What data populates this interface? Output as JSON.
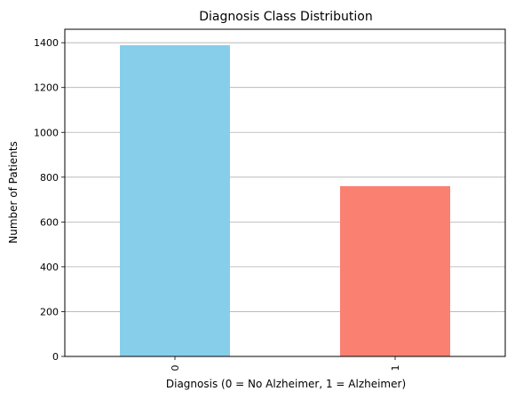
{
  "chart_data": {
    "type": "bar",
    "title": "Diagnosis Class Distribution",
    "xlabel": "Diagnosis (0 = No Alzheimer, 1 = Alzheimer)",
    "ylabel": "Number of Patients",
    "categories": [
      "0",
      "1"
    ],
    "values": [
      1389,
      760
    ],
    "colors": [
      "#87ceeb",
      "#fa8072"
    ],
    "ylim": [
      0,
      1460
    ],
    "yticks": [
      0,
      200,
      400,
      600,
      800,
      1000,
      1200,
      1400
    ],
    "grid": "y",
    "legend": "none"
  }
}
